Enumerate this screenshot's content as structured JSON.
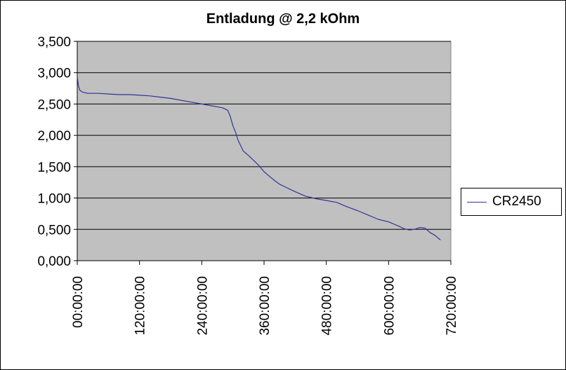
{
  "chart_data": {
    "type": "line",
    "title": "Entladung @ 2,2 kOhm",
    "xlabel": "",
    "ylabel": "",
    "ylim": [
      0,
      3.5
    ],
    "xlim": [
      0,
      720
    ],
    "x_unit": "hours",
    "y_ticks": [
      "0,000",
      "0,500",
      "1,000",
      "1,500",
      "2,000",
      "2,500",
      "3,000",
      "3,500"
    ],
    "x_ticks": [
      "00:00:00",
      "120:00:00",
      "240:00:00",
      "360:00:00",
      "480:00:00",
      "600:00:00",
      "720:00:00"
    ],
    "grid": true,
    "legend_position": "right",
    "plot_background": "#c0c0c0",
    "series": [
      {
        "name": "CR2450",
        "color": "#333399",
        "x": [
          0,
          2,
          5,
          10,
          20,
          40,
          60,
          80,
          100,
          120,
          140,
          160,
          180,
          200,
          220,
          240,
          260,
          280,
          290,
          295,
          300,
          305,
          310,
          320,
          330,
          340,
          350,
          360,
          370,
          380,
          390,
          400,
          420,
          440,
          460,
          480,
          500,
          520,
          540,
          560,
          580,
          600,
          620,
          630,
          640,
          650,
          660,
          670,
          680,
          690,
          700
        ],
        "y": [
          2.95,
          2.8,
          2.72,
          2.69,
          2.67,
          2.67,
          2.66,
          2.65,
          2.65,
          2.64,
          2.63,
          2.61,
          2.59,
          2.56,
          2.53,
          2.5,
          2.47,
          2.44,
          2.4,
          2.3,
          2.15,
          2.05,
          1.92,
          1.75,
          1.68,
          1.6,
          1.52,
          1.42,
          1.35,
          1.28,
          1.22,
          1.18,
          1.1,
          1.03,
          0.99,
          0.96,
          0.93,
          0.86,
          0.8,
          0.73,
          0.66,
          0.62,
          0.55,
          0.51,
          0.49,
          0.5,
          0.53,
          0.52,
          0.45,
          0.4,
          0.33
        ]
      }
    ]
  },
  "legend": {
    "label": "CR2450"
  }
}
